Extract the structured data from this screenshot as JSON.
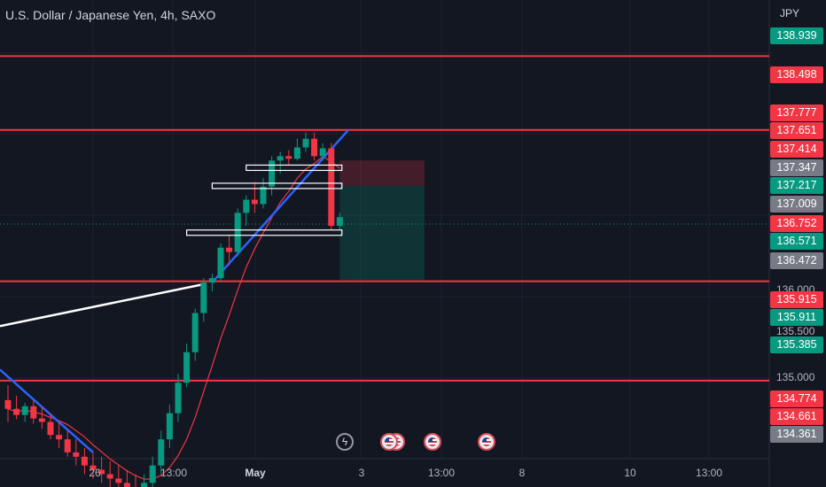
{
  "header": {
    "symbol_title": "U.S. Dollar / Japanese Yen, 4h, SAXO",
    "currency": "JPY"
  },
  "price_axis": {
    "plain_labels": [
      "136.000",
      "135.500",
      "135.000"
    ],
    "tags": [
      {
        "value": "138.939",
        "color": "#089981"
      },
      {
        "value": "138.498",
        "color": "#f23645"
      },
      {
        "value": "137.777",
        "color": "#f23645"
      },
      {
        "value": "137.651",
        "color": "#f23645"
      },
      {
        "value": "137.414",
        "color": "#f23645"
      },
      {
        "value": "137.347",
        "color": "#787b86"
      },
      {
        "value": "137.217",
        "color": "#089981"
      },
      {
        "value": "137.009",
        "color": "#787b86"
      },
      {
        "value": "136.752",
        "color": "#f23645"
      },
      {
        "value": "136.571",
        "color": "#089981"
      },
      {
        "value": "136.472",
        "color": "#787b86"
      },
      {
        "value": "135.915",
        "color": "#f23645"
      },
      {
        "value": "135.911",
        "color": "#089981"
      },
      {
        "value": "135.385",
        "color": "#089981"
      },
      {
        "value": "134.774",
        "color": "#f23645"
      },
      {
        "value": "134.661",
        "color": "#f23645"
      },
      {
        "value": "134.361",
        "color": "#787b86"
      }
    ]
  },
  "time_axis": {
    "labels": [
      {
        "text": "26",
        "bold": false
      },
      {
        "text": "13:00",
        "bold": false
      },
      {
        "text": "May",
        "bold": true
      },
      {
        "text": "3",
        "bold": false
      },
      {
        "text": "13:00",
        "bold": false
      },
      {
        "text": "8",
        "bold": false
      },
      {
        "text": "10",
        "bold": false
      },
      {
        "text": "13:00",
        "bold": false
      }
    ]
  },
  "events": [
    "lightning-event-icon",
    "us-flag-event-icon",
    "us-flag-event-icon",
    "us-flag-event-icon",
    "us-flag-event-icon"
  ],
  "colors": {
    "background": "#131722",
    "bull": "#089981",
    "bear": "#f23645",
    "level_line": "#f23645",
    "trendline": "#2962ff",
    "moving_average": "#f23645"
  },
  "chart_data": {
    "type": "candlestick",
    "timeframe": "4h",
    "horizontal_levels": [
      138.498,
      137.651,
      135.915,
      134.774
    ],
    "candles": [
      {
        "o": 134.55,
        "h": 134.72,
        "l": 134.3,
        "c": 134.45
      },
      {
        "o": 134.45,
        "h": 134.6,
        "l": 134.33,
        "c": 134.38
      },
      {
        "o": 134.38,
        "h": 134.52,
        "l": 134.3,
        "c": 134.48
      },
      {
        "o": 134.48,
        "h": 134.55,
        "l": 134.28,
        "c": 134.34
      },
      {
        "o": 134.34,
        "h": 134.48,
        "l": 134.22,
        "c": 134.3
      },
      {
        "o": 134.3,
        "h": 134.4,
        "l": 134.1,
        "c": 134.15
      },
      {
        "o": 134.15,
        "h": 134.3,
        "l": 134.0,
        "c": 134.1
      },
      {
        "o": 134.1,
        "h": 134.2,
        "l": 133.9,
        "c": 133.95
      },
      {
        "o": 133.95,
        "h": 134.1,
        "l": 133.8,
        "c": 133.9
      },
      {
        "o": 133.9,
        "h": 134.0,
        "l": 133.7,
        "c": 133.8
      },
      {
        "o": 133.8,
        "h": 133.95,
        "l": 133.65,
        "c": 133.75
      },
      {
        "o": 133.75,
        "h": 133.9,
        "l": 133.6,
        "c": 133.7
      },
      {
        "o": 133.7,
        "h": 133.85,
        "l": 133.55,
        "c": 133.65
      },
      {
        "o": 133.65,
        "h": 133.8,
        "l": 133.5,
        "c": 133.6
      },
      {
        "o": 133.6,
        "h": 133.75,
        "l": 133.45,
        "c": 133.55
      },
      {
        "o": 133.55,
        "h": 133.7,
        "l": 133.4,
        "c": 133.5
      },
      {
        "o": 133.5,
        "h": 133.7,
        "l": 133.4,
        "c": 133.6
      },
      {
        "o": 133.6,
        "h": 133.9,
        "l": 133.5,
        "c": 133.8
      },
      {
        "o": 133.8,
        "h": 134.2,
        "l": 133.7,
        "c": 134.1
      },
      {
        "o": 134.1,
        "h": 134.5,
        "l": 134.0,
        "c": 134.4
      },
      {
        "o": 134.4,
        "h": 134.85,
        "l": 134.3,
        "c": 134.75
      },
      {
        "o": 134.75,
        "h": 135.2,
        "l": 134.7,
        "c": 135.1
      },
      {
        "o": 135.1,
        "h": 135.6,
        "l": 135.0,
        "c": 135.55
      },
      {
        "o": 135.55,
        "h": 135.95,
        "l": 135.45,
        "c": 135.9
      },
      {
        "o": 135.9,
        "h": 136.0,
        "l": 135.8,
        "c": 135.95
      },
      {
        "o": 135.95,
        "h": 136.35,
        "l": 135.9,
        "c": 136.3
      },
      {
        "o": 136.3,
        "h": 136.45,
        "l": 136.1,
        "c": 136.25
      },
      {
        "o": 136.25,
        "h": 136.75,
        "l": 136.2,
        "c": 136.7
      },
      {
        "o": 136.7,
        "h": 136.9,
        "l": 136.55,
        "c": 136.85
      },
      {
        "o": 136.85,
        "h": 137.05,
        "l": 136.7,
        "c": 136.8
      },
      {
        "o": 136.8,
        "h": 137.1,
        "l": 136.75,
        "c": 137.0
      },
      {
        "o": 137.0,
        "h": 137.35,
        "l": 136.9,
        "c": 137.3
      },
      {
        "o": 137.3,
        "h": 137.4,
        "l": 137.15,
        "c": 137.35
      },
      {
        "o": 137.35,
        "h": 137.42,
        "l": 137.25,
        "c": 137.32
      },
      {
        "o": 137.32,
        "h": 137.55,
        "l": 137.3,
        "c": 137.45
      },
      {
        "o": 137.45,
        "h": 137.62,
        "l": 137.4,
        "c": 137.55
      },
      {
        "o": 137.55,
        "h": 137.62,
        "l": 137.3,
        "c": 137.35
      },
      {
        "o": 137.35,
        "h": 137.5,
        "l": 137.3,
        "c": 137.44
      },
      {
        "o": 137.44,
        "h": 137.5,
        "l": 136.5,
        "c": 136.55
      },
      {
        "o": 136.55,
        "h": 136.7,
        "l": 136.5,
        "c": 136.65
      }
    ],
    "zones": [
      {
        "price": 137.217,
        "from": 28,
        "to": 38
      },
      {
        "price": 137.009,
        "from": 24,
        "to": 38
      },
      {
        "price": 136.472,
        "from": 21,
        "to": 38
      }
    ],
    "position_tool": {
      "entry": 137.009,
      "stop": 137.3,
      "target": 135.93
    }
  }
}
